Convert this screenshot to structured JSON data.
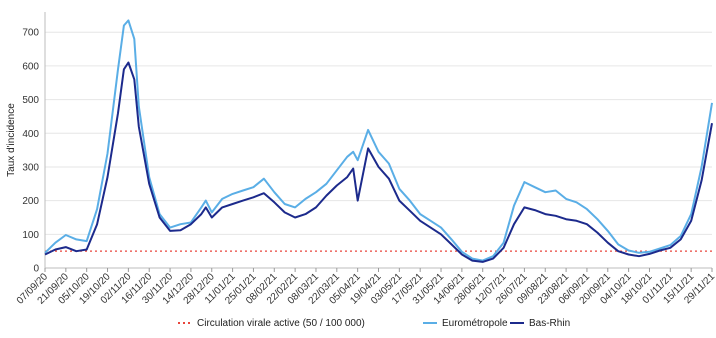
{
  "chart_data": {
    "type": "line",
    "ylabel": "Taux d'incidence",
    "xlabel": "",
    "ylim": [
      0,
      760
    ],
    "yticks": [
      0,
      100,
      200,
      300,
      400,
      500,
      600,
      700
    ],
    "x_start": "07/09/20",
    "x_end": "29/11/21",
    "xtick_labels": [
      "07/09/20",
      "21/09/20",
      "05/10/20",
      "19/10/20",
      "02/11/20",
      "16/11/20",
      "30/11/20",
      "14/12/20",
      "28/12/20",
      "11/01/21",
      "25/01/21",
      "08/02/21",
      "22/02/21",
      "08/03/21",
      "22/03/21",
      "05/04/21",
      "19/04/21",
      "03/05/21",
      "17/05/21",
      "31/05/21",
      "14/06/21",
      "28/06/21",
      "12/07/21",
      "26/07/21",
      "09/08/21",
      "23/08/21",
      "06/09/21",
      "20/09/21",
      "04/10/21",
      "18/10/21",
      "01/11/21",
      "15/11/21",
      "29/11/21"
    ],
    "grid": true,
    "legend_position": "bottom",
    "reference_line": {
      "name": "Circulation virale active (50 / 100 000)",
      "value": 50,
      "color": "#e8463c",
      "style": "dotted"
    },
    "series": [
      {
        "name": "Eurométropole",
        "color": "#5aaee6",
        "points": [
          [
            "07/09/20",
            45
          ],
          [
            "14/09/20",
            75
          ],
          [
            "21/09/20",
            98
          ],
          [
            "28/09/20",
            85
          ],
          [
            "05/10/20",
            80
          ],
          [
            "12/10/20",
            175
          ],
          [
            "19/10/20",
            340
          ],
          [
            "26/10/20",
            590
          ],
          [
            "30/10/20",
            720
          ],
          [
            "02/11/20",
            735
          ],
          [
            "06/11/20",
            680
          ],
          [
            "09/11/20",
            480
          ],
          [
            "16/11/20",
            270
          ],
          [
            "23/11/20",
            160
          ],
          [
            "30/11/20",
            120
          ],
          [
            "07/12/20",
            130
          ],
          [
            "14/12/20",
            135
          ],
          [
            "21/12/20",
            180
          ],
          [
            "24/12/20",
            200
          ],
          [
            "28/12/20",
            165
          ],
          [
            "04/01/21",
            205
          ],
          [
            "11/01/21",
            220
          ],
          [
            "18/01/21",
            230
          ],
          [
            "25/01/21",
            240
          ],
          [
            "01/02/21",
            265
          ],
          [
            "08/02/21",
            225
          ],
          [
            "15/02/21",
            190
          ],
          [
            "22/02/21",
            180
          ],
          [
            "01/03/21",
            205
          ],
          [
            "08/03/21",
            225
          ],
          [
            "15/03/21",
            250
          ],
          [
            "22/03/21",
            290
          ],
          [
            "29/03/21",
            330
          ],
          [
            "02/04/21",
            345
          ],
          [
            "05/04/21",
            320
          ],
          [
            "12/04/21",
            410
          ],
          [
            "19/04/21",
            345
          ],
          [
            "26/04/21",
            310
          ],
          [
            "03/05/21",
            235
          ],
          [
            "10/05/21",
            200
          ],
          [
            "17/05/21",
            160
          ],
          [
            "24/05/21",
            140
          ],
          [
            "31/05/21",
            120
          ],
          [
            "07/06/21",
            85
          ],
          [
            "14/06/21",
            48
          ],
          [
            "21/06/21",
            28
          ],
          [
            "28/06/21",
            22
          ],
          [
            "05/07/21",
            35
          ],
          [
            "12/07/21",
            75
          ],
          [
            "19/07/21",
            185
          ],
          [
            "26/07/21",
            255
          ],
          [
            "02/08/21",
            240
          ],
          [
            "09/08/21",
            225
          ],
          [
            "16/08/21",
            230
          ],
          [
            "23/08/21",
            205
          ],
          [
            "30/08/21",
            195
          ],
          [
            "06/09/21",
            175
          ],
          [
            "13/09/21",
            145
          ],
          [
            "20/09/21",
            110
          ],
          [
            "27/09/21",
            70
          ],
          [
            "04/10/21",
            52
          ],
          [
            "11/10/21",
            45
          ],
          [
            "18/10/21",
            48
          ],
          [
            "25/10/21",
            58
          ],
          [
            "01/11/21",
            68
          ],
          [
            "08/11/21",
            95
          ],
          [
            "15/11/21",
            160
          ],
          [
            "22/11/21",
            300
          ],
          [
            "29/11/21",
            490
          ]
        ]
      },
      {
        "name": "Bas-Rhin",
        "color": "#1c2a8c",
        "points": [
          [
            "07/09/20",
            40
          ],
          [
            "14/09/20",
            55
          ],
          [
            "21/09/20",
            62
          ],
          [
            "28/09/20",
            50
          ],
          [
            "05/10/20",
            55
          ],
          [
            "12/10/20",
            130
          ],
          [
            "19/10/20",
            270
          ],
          [
            "26/10/20",
            460
          ],
          [
            "30/10/20",
            590
          ],
          [
            "02/11/20",
            610
          ],
          [
            "06/11/20",
            560
          ],
          [
            "09/11/20",
            420
          ],
          [
            "16/11/20",
            250
          ],
          [
            "23/11/20",
            150
          ],
          [
            "30/11/20",
            110
          ],
          [
            "07/12/20",
            112
          ],
          [
            "14/12/20",
            130
          ],
          [
            "21/12/20",
            160
          ],
          [
            "24/12/20",
            180
          ],
          [
            "28/12/20",
            150
          ],
          [
            "04/01/21",
            180
          ],
          [
            "11/01/21",
            190
          ],
          [
            "18/01/21",
            200
          ],
          [
            "25/01/21",
            210
          ],
          [
            "01/02/21",
            222
          ],
          [
            "08/02/21",
            195
          ],
          [
            "15/02/21",
            165
          ],
          [
            "22/02/21",
            150
          ],
          [
            "01/03/21",
            160
          ],
          [
            "08/03/21",
            180
          ],
          [
            "15/03/21",
            215
          ],
          [
            "22/03/21",
            245
          ],
          [
            "29/03/21",
            270
          ],
          [
            "02/04/21",
            295
          ],
          [
            "05/04/21",
            200
          ],
          [
            "12/04/21",
            355
          ],
          [
            "19/04/21",
            300
          ],
          [
            "26/04/21",
            265
          ],
          [
            "03/05/21",
            200
          ],
          [
            "10/05/21",
            170
          ],
          [
            "17/05/21",
            140
          ],
          [
            "24/05/21",
            120
          ],
          [
            "31/05/21",
            100
          ],
          [
            "07/06/21",
            70
          ],
          [
            "14/06/21",
            40
          ],
          [
            "21/06/21",
            22
          ],
          [
            "28/06/21",
            18
          ],
          [
            "05/07/21",
            28
          ],
          [
            "12/07/21",
            60
          ],
          [
            "19/07/21",
            130
          ],
          [
            "26/07/21",
            180
          ],
          [
            "02/08/21",
            172
          ],
          [
            "09/08/21",
            160
          ],
          [
            "16/08/21",
            155
          ],
          [
            "23/08/21",
            145
          ],
          [
            "30/08/21",
            140
          ],
          [
            "06/09/21",
            130
          ],
          [
            "13/09/21",
            105
          ],
          [
            "20/09/21",
            75
          ],
          [
            "27/09/21",
            50
          ],
          [
            "04/10/21",
            40
          ],
          [
            "11/10/21",
            35
          ],
          [
            "18/10/21",
            42
          ],
          [
            "25/10/21",
            52
          ],
          [
            "01/11/21",
            60
          ],
          [
            "08/11/21",
            85
          ],
          [
            "15/11/21",
            140
          ],
          [
            "22/11/21",
            260
          ],
          [
            "29/11/21",
            430
          ]
        ]
      }
    ]
  }
}
